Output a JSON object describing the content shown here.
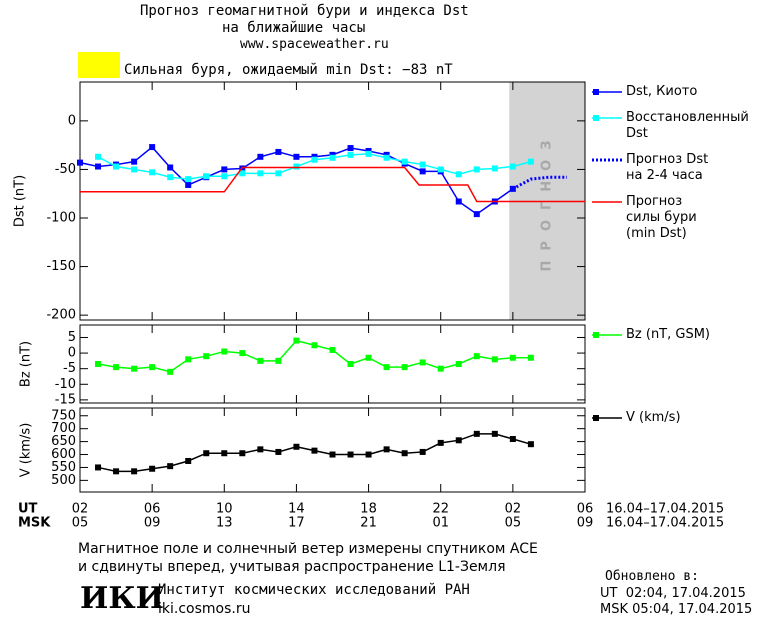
{
  "header": {
    "title": "Прогноз геомагнитной бури и индекса Dst",
    "subtitle": "на ближайшие часы",
    "url": "www.spaceweather.ru",
    "storm_note": "Сильная буря, ожидаемый min Dst: −83 nT",
    "storm_color": "#ffff00"
  },
  "chart_data": [
    {
      "type": "line",
      "ylabel": "Dst (nT)",
      "xlim": [
        0,
        28
      ],
      "ylim": [
        -205,
        40
      ],
      "yticks": [
        0,
        -50,
        -100,
        -150,
        -200
      ],
      "forecast": {
        "start": 23.8,
        "label": "ПРОГНОЗ",
        "color": "#d3d3d3"
      },
      "series": [
        {
          "name": "Dst, Киото",
          "color": "#0000ff",
          "marker": true,
          "style": "solid",
          "x": [
            0,
            1,
            2,
            3,
            4,
            5,
            6,
            7,
            8,
            9,
            10,
            11,
            12,
            13,
            14,
            15,
            16,
            17,
            18,
            19,
            20,
            21,
            22,
            23,
            24
          ],
          "values": [
            -43,
            -47,
            -45,
            -42,
            -27,
            -48,
            -66,
            -58,
            -50,
            -49,
            -37,
            -32,
            -37,
            -37,
            -35,
            -28,
            -31,
            -35,
            -44,
            -52,
            -52,
            -83,
            -96,
            -83,
            -70
          ]
        },
        {
          "name": "Восстановленный\nDst",
          "color": "#00ffff",
          "marker": true,
          "style": "solid",
          "x": [
            1,
            2,
            3,
            4,
            5,
            6,
            7,
            8,
            9,
            10,
            11,
            12,
            13,
            14,
            15,
            16,
            17,
            18,
            19,
            20,
            21,
            22,
            23,
            24,
            25
          ],
          "values": [
            -37,
            -47,
            -50,
            -53,
            -58,
            -60,
            -57,
            -57,
            -54,
            -54,
            -54,
            -47,
            -40,
            -38,
            -35,
            -34,
            -38,
            -42,
            -45,
            -50,
            -55,
            -50,
            -49,
            -47,
            -42
          ]
        },
        {
          "name": "Прогноз Dst\nна 2-4 часа",
          "color": "#0000ff",
          "marker": false,
          "style": "dotted",
          "x": [
            24,
            25,
            26,
            27
          ],
          "values": [
            -70,
            -60,
            -58,
            -58
          ]
        },
        {
          "name": "Прогноз\nсилы бури\n(min Dst)",
          "color": "#ff0000",
          "marker": false,
          "style": "solid",
          "x": [
            0,
            8,
            9,
            18,
            18.8,
            21.5,
            22,
            28
          ],
          "values": [
            -73,
            -73,
            -48,
            -48,
            -66,
            -66,
            -83,
            -83
          ]
        }
      ]
    },
    {
      "type": "line",
      "ylabel": "Bz (nT)",
      "xlim": [
        0,
        28
      ],
      "ylim": [
        -16,
        9
      ],
      "yticks": [
        5,
        0,
        -5,
        -10,
        -15
      ],
      "series": [
        {
          "name": "Bz (nT, GSM)",
          "color": "#00ff00",
          "marker": true,
          "style": "solid",
          "x": [
            1,
            2,
            3,
            4,
            5,
            6,
            7,
            8,
            9,
            10,
            11,
            12,
            13,
            14,
            15,
            16,
            17,
            18,
            19,
            20,
            21,
            22,
            23,
            24,
            25
          ],
          "values": [
            -3.5,
            -4.5,
            -5,
            -4.5,
            -6,
            -2,
            -1,
            0.5,
            0,
            -2.5,
            -2.5,
            4,
            2.5,
            1,
            -3.5,
            -1.5,
            -4.5,
            -4.5,
            -3,
            -5,
            -3.5,
            -1,
            -2,
            -1.5,
            -1.5
          ]
        }
      ]
    },
    {
      "type": "line",
      "ylabel": "V (km/s)",
      "xlim": [
        0,
        28
      ],
      "ylim": [
        455,
        780
      ],
      "yticks": [
        750,
        700,
        650,
        600,
        550,
        500
      ],
      "series": [
        {
          "name": "V (km/s)",
          "color": "#000000",
          "marker": true,
          "style": "solid",
          "x": [
            1,
            2,
            3,
            4,
            5,
            6,
            7,
            8,
            9,
            10,
            11,
            12,
            13,
            14,
            15,
            16,
            17,
            18,
            19,
            20,
            21,
            22,
            23,
            24,
            25
          ],
          "values": [
            550,
            535,
            535,
            545,
            555,
            575,
            605,
            605,
            605,
            620,
            610,
            630,
            615,
            600,
            600,
            600,
            620,
            605,
            610,
            645,
            655,
            680,
            680,
            660,
            640
          ]
        }
      ],
      "x_rows": [
        "UT",
        "MSK"
      ],
      "xticks": [
        {
          "value": 0,
          "label": "02"
        },
        {
          "value": 4,
          "label": "06"
        },
        {
          "value": 8,
          "label": "10"
        },
        {
          "value": 12,
          "label": "14"
        },
        {
          "value": 16,
          "label": "18"
        },
        {
          "value": 20,
          "label": "22"
        },
        {
          "value": 24,
          "label": "02"
        },
        {
          "value": 28,
          "label": "06"
        }
      ],
      "xticks_msk": [
        {
          "value": 0,
          "label": "05"
        },
        {
          "value": 4,
          "label": "09"
        },
        {
          "value": 8,
          "label": "13"
        },
        {
          "value": 12,
          "label": "17"
        },
        {
          "value": 16,
          "label": "21"
        },
        {
          "value": 20,
          "label": "01"
        },
        {
          "value": 24,
          "label": "05"
        },
        {
          "value": 28,
          "label": "09"
        }
      ],
      "date_range": "16.04–17.04.2015"
    }
  ],
  "footer": {
    "note_lines": [
      "Магнитное поле и солнечный ветер измерены спутником ACE",
      "и сдвинуты вперед, учитывая распространение L1-Земля"
    ],
    "logo": "ИКИ",
    "institute": "Институт космических исследований РАН",
    "site": "iki.cosmos.ru",
    "updated_label": "Обновлено в:",
    "updated": [
      "UT  02:04, 17.04.2015",
      "MSK 05:04, 17.04.2015"
    ]
  }
}
